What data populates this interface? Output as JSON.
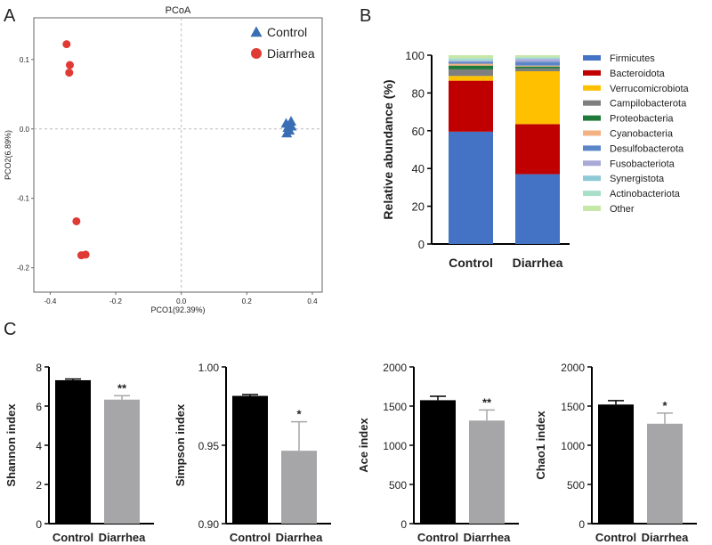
{
  "panel_labels": [
    "A",
    "B",
    "C"
  ],
  "chart_data": [
    {
      "type": "scatter",
      "title": "PCoA",
      "xlabel": "PCO1(92.39%)",
      "ylabel": "PCO2(6.89%)",
      "xlim": [
        -0.45,
        0.43
      ],
      "ylim": [
        -0.235,
        0.16
      ],
      "xticks": [
        -0.4,
        -0.2,
        0.0,
        0.2,
        0.4
      ],
      "xtick_labels": [
        "-0.4",
        "-0.2",
        "0.0",
        "0.2",
        "0.4"
      ],
      "yticks": [
        0.1,
        0.0,
        -0.1,
        -0.2
      ],
      "ytick_labels": [
        "0.1",
        "0.0",
        "-0.1",
        "-0.2"
      ],
      "legend_position": "top-right",
      "series": [
        {
          "name": "Control",
          "marker": "triangle",
          "color": "#3a6eb4",
          "points": [
            [
              0.32,
              0.008
            ],
            [
              0.335,
              0.011
            ],
            [
              0.325,
              0.002
            ],
            [
              0.33,
              -0.002
            ],
            [
              0.322,
              -0.006
            ],
            [
              0.336,
              0.004
            ]
          ]
        },
        {
          "name": "Diarrhea",
          "marker": "circle",
          "color": "#e03a34",
          "points": [
            [
              -0.35,
              0.122
            ],
            [
              -0.34,
              0.092
            ],
            [
              -0.342,
              0.081
            ],
            [
              -0.32,
              -0.133
            ],
            [
              -0.292,
              -0.181
            ],
            [
              -0.305,
              -0.182
            ]
          ]
        }
      ]
    },
    {
      "type": "stacked-bar",
      "ylabel": "Relative abundance (%)",
      "ylim": [
        0,
        100
      ],
      "yticks": [
        0,
        20,
        40,
        60,
        80,
        100
      ],
      "categories": [
        "Control",
        "Diarrhea"
      ],
      "series": [
        {
          "name": "Firmicutes",
          "color": "#4472c4",
          "values": [
            59.5,
            37.0
          ]
        },
        {
          "name": "Bacteroidota",
          "color": "#c00000",
          "values": [
            27.0,
            26.5
          ]
        },
        {
          "name": "Verrucomicrobiota",
          "color": "#ffc000",
          "values": [
            2.5,
            28.0
          ]
        },
        {
          "name": "Campilobacterota",
          "color": "#7f7f7f",
          "values": [
            3.5,
            1.5
          ]
        },
        {
          "name": "Proteobacteria",
          "color": "#1f7a3a",
          "values": [
            2.0,
            1.0
          ]
        },
        {
          "name": "Cyanobacteria",
          "color": "#f4b183",
          "values": [
            1.0,
            0.5
          ]
        },
        {
          "name": "Desulfobacterota",
          "color": "#5b87c9",
          "values": [
            1.0,
            2.0
          ]
        },
        {
          "name": "Fusobacteriota",
          "color": "#a9a9d8",
          "values": [
            0.5,
            1.5
          ]
        },
        {
          "name": "Synergistota",
          "color": "#8ecad6",
          "values": [
            0.5,
            0.5
          ]
        },
        {
          "name": "Actinobacteriota",
          "color": "#a8dfc8",
          "values": [
            1.0,
            0.5
          ]
        },
        {
          "name": "Other",
          "color": "#c6e8a6",
          "values": [
            1.5,
            1.0
          ]
        }
      ]
    },
    {
      "type": "bar",
      "ylabel": "Shannon index",
      "categories": [
        "Control",
        "Diarrhea"
      ],
      "values": [
        7.32,
        6.33
      ],
      "errors": [
        0.06,
        0.2
      ],
      "significance": [
        "",
        "**"
      ],
      "ylim": [
        0,
        8
      ],
      "yticks": [
        0,
        2,
        4,
        6,
        8
      ],
      "ytick_labels": [
        "0",
        "2",
        "4",
        "6",
        "8"
      ]
    },
    {
      "type": "bar",
      "ylabel": "Simpson index",
      "categories": [
        "Control",
        "Diarrhea"
      ],
      "values": [
        0.9815,
        0.9465
      ],
      "errors": [
        0.0008,
        0.0185
      ],
      "significance": [
        "",
        "*"
      ],
      "ylim": [
        0.9,
        1.0
      ],
      "yticks": [
        0.9,
        0.95,
        1.0
      ],
      "ytick_labels": [
        "0.90",
        "0.95",
        "1.00"
      ]
    },
    {
      "type": "bar",
      "ylabel": "Ace index",
      "categories": [
        "Control",
        "Diarrhea"
      ],
      "values": [
        1575,
        1315
      ],
      "errors": [
        50,
        135
      ],
      "significance": [
        "",
        "**"
      ],
      "ylim": [
        0,
        2000
      ],
      "yticks": [
        0,
        500,
        1000,
        1500,
        2000
      ],
      "ytick_labels": [
        "0",
        "500",
        "1000",
        "1500",
        "2000"
      ]
    },
    {
      "type": "bar",
      "ylabel": "Chao1 index",
      "categories": [
        "Control",
        "Diarrhea"
      ],
      "values": [
        1520,
        1275
      ],
      "errors": [
        50,
        135
      ],
      "significance": [
        "",
        "*"
      ],
      "ylim": [
        0,
        2000
      ],
      "yticks": [
        0,
        500,
        1000,
        1500,
        2000
      ],
      "ytick_labels": [
        "0",
        "500",
        "1000",
        "1500",
        "2000"
      ]
    }
  ]
}
